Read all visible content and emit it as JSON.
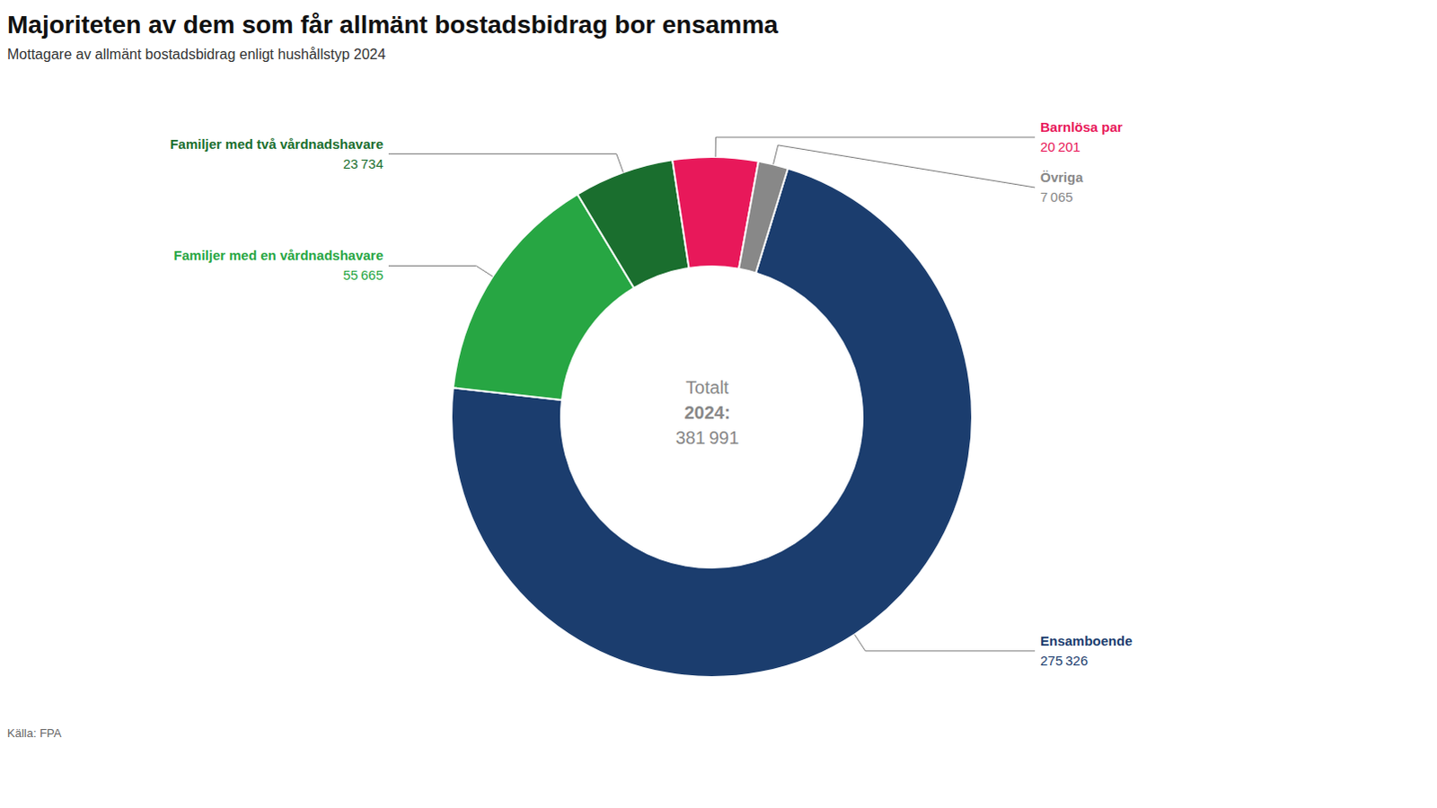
{
  "chart_data": {
    "type": "donut",
    "title": "Majoriteten av dem som får allmänt bostadsbidrag bor ensamma",
    "subtitle": "Mottagare av allmänt bostadsbidrag enligt hushållstyp 2024",
    "source": "Källa: FPA",
    "annotations": [
      "Totalt",
      "2024:",
      "381 991"
    ],
    "categories": [
      "Ensamboende",
      "Familjer med en vårdnadshavare",
      "Familjer med två vårdnadshavare",
      "Barnlösa par",
      "Övriga"
    ],
    "values": [
      275326,
      55665,
      23734,
      20201,
      7065
    ],
    "value_labels": [
      "275 326",
      "55 665",
      "23 734",
      "20 201",
      "7 065"
    ],
    "colors": [
      "#1b3d6e",
      "#27a643",
      "#1a6e2e",
      "#e8185a",
      "#888888"
    ],
    "data_labels": true
  }
}
